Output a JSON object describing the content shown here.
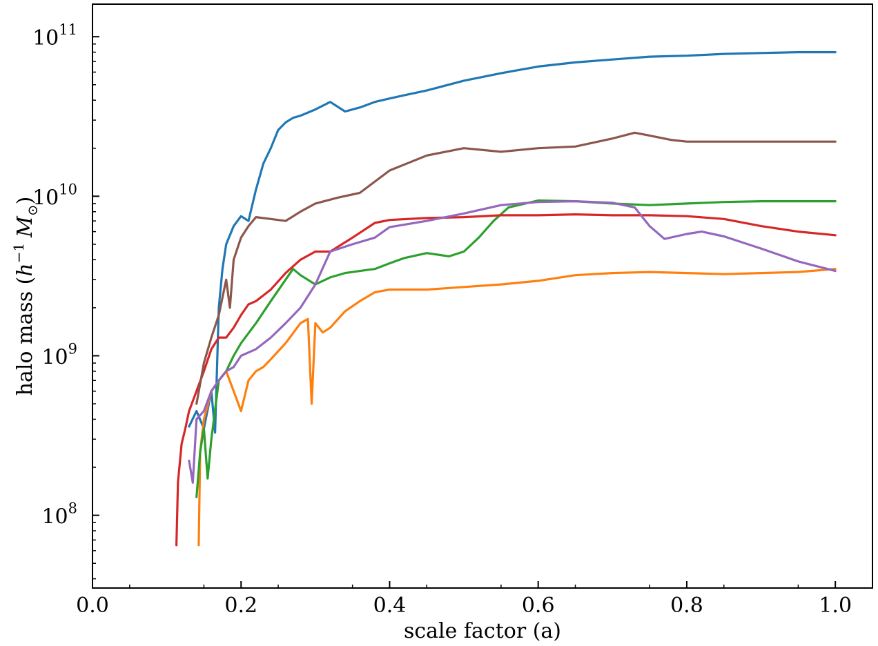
{
  "chart_data": {
    "type": "line",
    "title": "",
    "xlabel": "scale factor (a)",
    "ylabel": "halo mass (h⁻¹ M☉)",
    "ylabel_parts": {
      "prefix": "halo mass (",
      "h": "h",
      "exp": "−1",
      "m": "M",
      "sun": "⊙",
      "suffix": ")"
    },
    "xscale": "linear",
    "yscale": "log",
    "xlim": [
      0.0,
      1.05
    ],
    "ylim": [
      35000000.0,
      160000000000.0
    ],
    "xticks": [
      {
        "value": 0.0,
        "label": "0.0"
      },
      {
        "value": 0.2,
        "label": "0.2"
      },
      {
        "value": 0.4,
        "label": "0.4"
      },
      {
        "value": 0.6,
        "label": "0.6"
      },
      {
        "value": 0.8,
        "label": "0.8"
      },
      {
        "value": 1.0,
        "label": "1.0"
      }
    ],
    "yticks": [
      {
        "value": 100000000.0,
        "base": "10",
        "exp": "8"
      },
      {
        "value": 1000000000.0,
        "base": "10",
        "exp": "9"
      },
      {
        "value": 10000000000.0,
        "base": "10",
        "exp": "10"
      },
      {
        "value": 100000000000.0,
        "base": "10",
        "exp": "11"
      }
    ],
    "grid": false,
    "legend": "none",
    "series": [
      {
        "color": "#1f77b4",
        "x": [
          0.13,
          0.14,
          0.15,
          0.16,
          0.165,
          0.17,
          0.175,
          0.18,
          0.19,
          0.2,
          0.21,
          0.22,
          0.23,
          0.24,
          0.25,
          0.26,
          0.27,
          0.28,
          0.3,
          0.32,
          0.34,
          0.36,
          0.38,
          0.4,
          0.42,
          0.45,
          0.5,
          0.55,
          0.6,
          0.65,
          0.7,
          0.75,
          0.8,
          0.85,
          0.9,
          0.95,
          1.0
        ],
        "y": [
          360000000.0,
          450000000.0,
          350000000.0,
          600000000.0,
          330000000.0,
          2000000000.0,
          3500000000.0,
          5000000000.0,
          6500000000.0,
          7500000000.0,
          7000000000.0,
          11000000000.0,
          16000000000.0,
          20000000000.0,
          26000000000.0,
          29000000000.0,
          31000000000.0,
          32000000000.0,
          35000000000.0,
          39000000000.0,
          34000000000.0,
          36000000000.0,
          39000000000.0,
          41000000000.0,
          43000000000.0,
          46000000000.0,
          53000000000.0,
          59000000000.0,
          65000000000.0,
          69000000000.0,
          72000000000.0,
          75000000000.0,
          76000000000.0,
          78000000000.0,
          79000000000.0,
          80000000000.0,
          80000000000.0
        ]
      },
      {
        "color": "#ff7f0e",
        "x": [
          0.143,
          0.145,
          0.15,
          0.16,
          0.17,
          0.18,
          0.19,
          0.2,
          0.21,
          0.22,
          0.23,
          0.24,
          0.26,
          0.28,
          0.29,
          0.295,
          0.3,
          0.31,
          0.32,
          0.34,
          0.36,
          0.38,
          0.4,
          0.45,
          0.5,
          0.55,
          0.6,
          0.65,
          0.7,
          0.75,
          0.8,
          0.85,
          0.9,
          0.95,
          1.0
        ],
        "y": [
          65000000.0,
          250000000.0,
          400000000.0,
          600000000.0,
          700000000.0,
          800000000.0,
          600000000.0,
          450000000.0,
          700000000.0,
          800000000.0,
          850000000.0,
          950000000.0,
          1200000000.0,
          1600000000.0,
          1700000000.0,
          500000000.0,
          1600000000.0,
          1400000000.0,
          1500000000.0,
          1900000000.0,
          2200000000.0,
          2500000000.0,
          2600000000.0,
          2600000000.0,
          2700000000.0,
          2800000000.0,
          2950000000.0,
          3200000000.0,
          3300000000.0,
          3350000000.0,
          3300000000.0,
          3250000000.0,
          3300000000.0,
          3350000000.0,
          3500000000.0
        ]
      },
      {
        "color": "#2ca02c",
        "x": [
          0.14,
          0.145,
          0.15,
          0.155,
          0.16,
          0.17,
          0.18,
          0.19,
          0.2,
          0.22,
          0.24,
          0.26,
          0.27,
          0.28,
          0.3,
          0.32,
          0.34,
          0.36,
          0.38,
          0.4,
          0.42,
          0.45,
          0.48,
          0.5,
          0.52,
          0.54,
          0.56,
          0.6,
          0.65,
          0.7,
          0.75,
          0.8,
          0.85,
          0.9,
          0.95,
          1.0
        ],
        "y": [
          130000000.0,
          250000000.0,
          350000000.0,
          170000000.0,
          300000000.0,
          700000000.0,
          800000000.0,
          1000000000.0,
          1200000000.0,
          1600000000.0,
          2200000000.0,
          3000000000.0,
          3500000000.0,
          3200000000.0,
          2800000000.0,
          3100000000.0,
          3300000000.0,
          3400000000.0,
          3500000000.0,
          3800000000.0,
          4100000000.0,
          4400000000.0,
          4200000000.0,
          4500000000.0,
          5500000000.0,
          7000000000.0,
          8500000000.0,
          9400000000.0,
          9300000000.0,
          9000000000.0,
          8800000000.0,
          9000000000.0,
          9200000000.0,
          9300000000.0,
          9300000000.0,
          9300000000.0
        ]
      },
      {
        "color": "#d62728",
        "x": [
          0.113,
          0.115,
          0.12,
          0.125,
          0.13,
          0.14,
          0.15,
          0.16,
          0.17,
          0.18,
          0.19,
          0.2,
          0.21,
          0.22,
          0.24,
          0.26,
          0.28,
          0.3,
          0.32,
          0.35,
          0.38,
          0.4,
          0.45,
          0.5,
          0.55,
          0.6,
          0.65,
          0.7,
          0.75,
          0.8,
          0.85,
          0.9,
          0.95,
          1.0
        ],
        "y": [
          65000000.0,
          160000000.0,
          280000000.0,
          350000000.0,
          450000000.0,
          600000000.0,
          800000000.0,
          1100000000.0,
          1300000000.0,
          1300000000.0,
          1500000000.0,
          1800000000.0,
          2100000000.0,
          2200000000.0,
          2600000000.0,
          3300000000.0,
          4000000000.0,
          4500000000.0,
          4500000000.0,
          5500000000.0,
          6800000000.0,
          7100000000.0,
          7300000000.0,
          7400000000.0,
          7600000000.0,
          7600000000.0,
          7700000000.0,
          7600000000.0,
          7600000000.0,
          7500000000.0,
          7200000000.0,
          6500000000.0,
          6000000000.0,
          5700000000.0
        ]
      },
      {
        "color": "#9467bd",
        "x": [
          0.13,
          0.135,
          0.14,
          0.15,
          0.16,
          0.17,
          0.18,
          0.19,
          0.2,
          0.22,
          0.24,
          0.26,
          0.28,
          0.3,
          0.32,
          0.35,
          0.38,
          0.4,
          0.45,
          0.5,
          0.55,
          0.6,
          0.65,
          0.7,
          0.73,
          0.75,
          0.77,
          0.8,
          0.82,
          0.85,
          0.9,
          0.95,
          1.0
        ],
        "y": [
          220000000.0,
          160000000.0,
          400000000.0,
          450000000.0,
          600000000.0,
          700000000.0,
          800000000.0,
          850000000.0,
          1000000000.0,
          1100000000.0,
          1300000000.0,
          1600000000.0,
          2000000000.0,
          2800000000.0,
          4500000000.0,
          5000000000.0,
          5500000000.0,
          6400000000.0,
          7000000000.0,
          7800000000.0,
          8800000000.0,
          9200000000.0,
          9300000000.0,
          9100000000.0,
          8500000000.0,
          6500000000.0,
          5400000000.0,
          5800000000.0,
          6000000000.0,
          5600000000.0,
          4700000000.0,
          3900000000.0,
          3400000000.0
        ]
      },
      {
        "color": "#8c564b",
        "x": [
          0.14,
          0.15,
          0.16,
          0.17,
          0.18,
          0.185,
          0.19,
          0.2,
          0.21,
          0.22,
          0.24,
          0.26,
          0.28,
          0.3,
          0.33,
          0.36,
          0.4,
          0.45,
          0.5,
          0.55,
          0.6,
          0.65,
          0.7,
          0.73,
          0.75,
          0.78,
          0.8,
          0.85,
          0.9,
          0.95,
          1.0
        ],
        "y": [
          500000000.0,
          900000000.0,
          1300000000.0,
          1800000000.0,
          3000000000.0,
          2000000000.0,
          4000000000.0,
          5500000000.0,
          6500000000.0,
          7400000000.0,
          7200000000.0,
          7000000000.0,
          8000000000.0,
          9000000000.0,
          9800000000.0,
          10500000000.0,
          14500000000.0,
          18000000000.0,
          20000000000.0,
          19000000000.0,
          20000000000.0,
          20500000000.0,
          23000000000.0,
          25000000000.0,
          24000000000.0,
          22500000000.0,
          22000000000.0,
          22000000000.0,
          22000000000.0,
          22000000000.0,
          22000000000.0
        ]
      }
    ]
  }
}
